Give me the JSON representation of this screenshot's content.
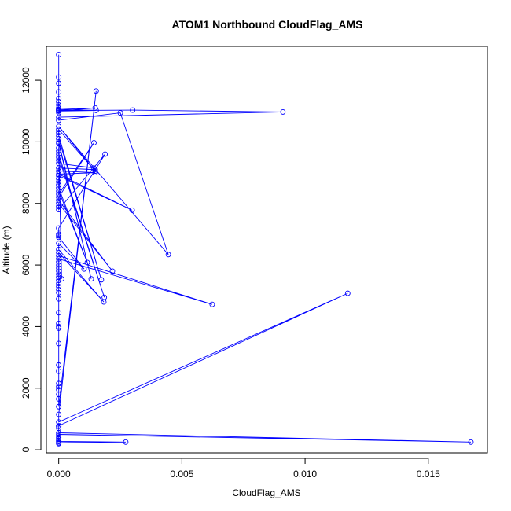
{
  "chart_data": {
    "type": "line",
    "title": "ATOM1 Northbound CloudFlag_AMS",
    "xlabel": "CloudFlag_AMS",
    "ylabel": "Altitude (m)",
    "xlim": [
      -0.0005,
      0.0174
    ],
    "ylim": [
      -100,
      13100
    ],
    "x_ticks": [
      0,
      0.005,
      0.01,
      0.015
    ],
    "x_tick_labels": [
      "0.000",
      "0.005",
      "0.010",
      "0.015"
    ],
    "y_ticks": [
      0,
      2000,
      4000,
      6000,
      8000,
      10000,
      12000
    ],
    "y_tick_labels": [
      "0",
      "2000",
      "4000",
      "6000",
      "8000",
      "10000",
      "12000"
    ],
    "grid": false,
    "legend": "none",
    "series": [
      {
        "color": "#0000ff",
        "marker": "open-circle",
        "x": [
          0.0,
          0.0,
          0.0,
          0.0,
          0.0,
          0.0,
          0.0,
          0.0,
          0.0,
          0.0,
          0.00148,
          0.0,
          0.0,
          0.0,
          0.00152,
          0.0,
          0.0,
          0.003,
          0.0091,
          0.0,
          0.0,
          0.0025,
          0.00445,
          0.0,
          0.00148,
          0.0,
          0.0,
          0.0,
          0.00173,
          0.0,
          0.0,
          0.00132,
          0.0,
          0.00012,
          0.0,
          0.0,
          0.0,
          0.00185,
          0.0,
          0.0,
          0.0,
          0.00142,
          0.00148,
          0.0,
          0.0,
          0.00148,
          0.0,
          0.00298,
          0.0,
          0.0,
          0.0,
          0.0,
          0.0,
          0.00116,
          0.0,
          0.0,
          0.00143,
          0.0,
          0.0,
          0.00218,
          0.0,
          0.0,
          0.0,
          0.00188,
          0.0,
          0.0,
          0.0,
          0.0,
          0.00103,
          0.0,
          0.0,
          0.00183,
          0.0,
          0.0,
          0.00623,
          0.0,
          0.0,
          0.0,
          0.0,
          0.0,
          0.0,
          0.0,
          0.0,
          0.0,
          0.0,
          0.0,
          0.0,
          0.0,
          0.0,
          0.0,
          0.0,
          0.0,
          0.0,
          0.0,
          0.0,
          0.0,
          0.0,
          0.0,
          0.0,
          0.0,
          0.0,
          0.00152,
          0.0,
          0.0,
          0.01173,
          0.0,
          0.0,
          0.0,
          0.0,
          0.01673,
          0.0,
          0.0,
          0.0,
          0.0,
          0.0,
          0.0,
          0.00272,
          0.0,
          0.0
        ],
        "y": [
          12830,
          12100,
          11900,
          11620,
          11400,
          11300,
          11200,
          11100,
          11050,
          11050,
          11100,
          11000,
          10950,
          11050,
          11020,
          11000,
          11020,
          11030,
          10970,
          10800,
          10700,
          10940,
          6340,
          10500,
          9050,
          10400,
          10300,
          10200,
          5520,
          10100,
          10000,
          5550,
          9950,
          5550,
          9800,
          9700,
          9600,
          4950,
          9500,
          9400,
          9300,
          9150,
          9100,
          9150,
          9050,
          9000,
          8950,
          7780,
          8900,
          8800,
          8700,
          8600,
          8500,
          6080,
          8400,
          8300,
          9970,
          8200,
          8100,
          5800,
          8000,
          7900,
          7800,
          9600,
          7200,
          7000,
          6950,
          6900,
          5870,
          6700,
          6500,
          4800,
          6400,
          6300,
          4720,
          6200,
          6100,
          6000,
          5900,
          5800,
          5700,
          5600,
          5500,
          5400,
          5300,
          5200,
          5100,
          4900,
          4450,
          4100,
          4000,
          3950,
          3450,
          2750,
          2550,
          2150,
          2050,
          1950,
          1800,
          1650,
          1400,
          11650,
          1150,
          900,
          5080,
          780,
          760,
          700,
          550,
          250,
          500,
          450,
          400,
          350,
          300,
          270,
          250,
          230,
          200
        ]
      }
    ]
  }
}
